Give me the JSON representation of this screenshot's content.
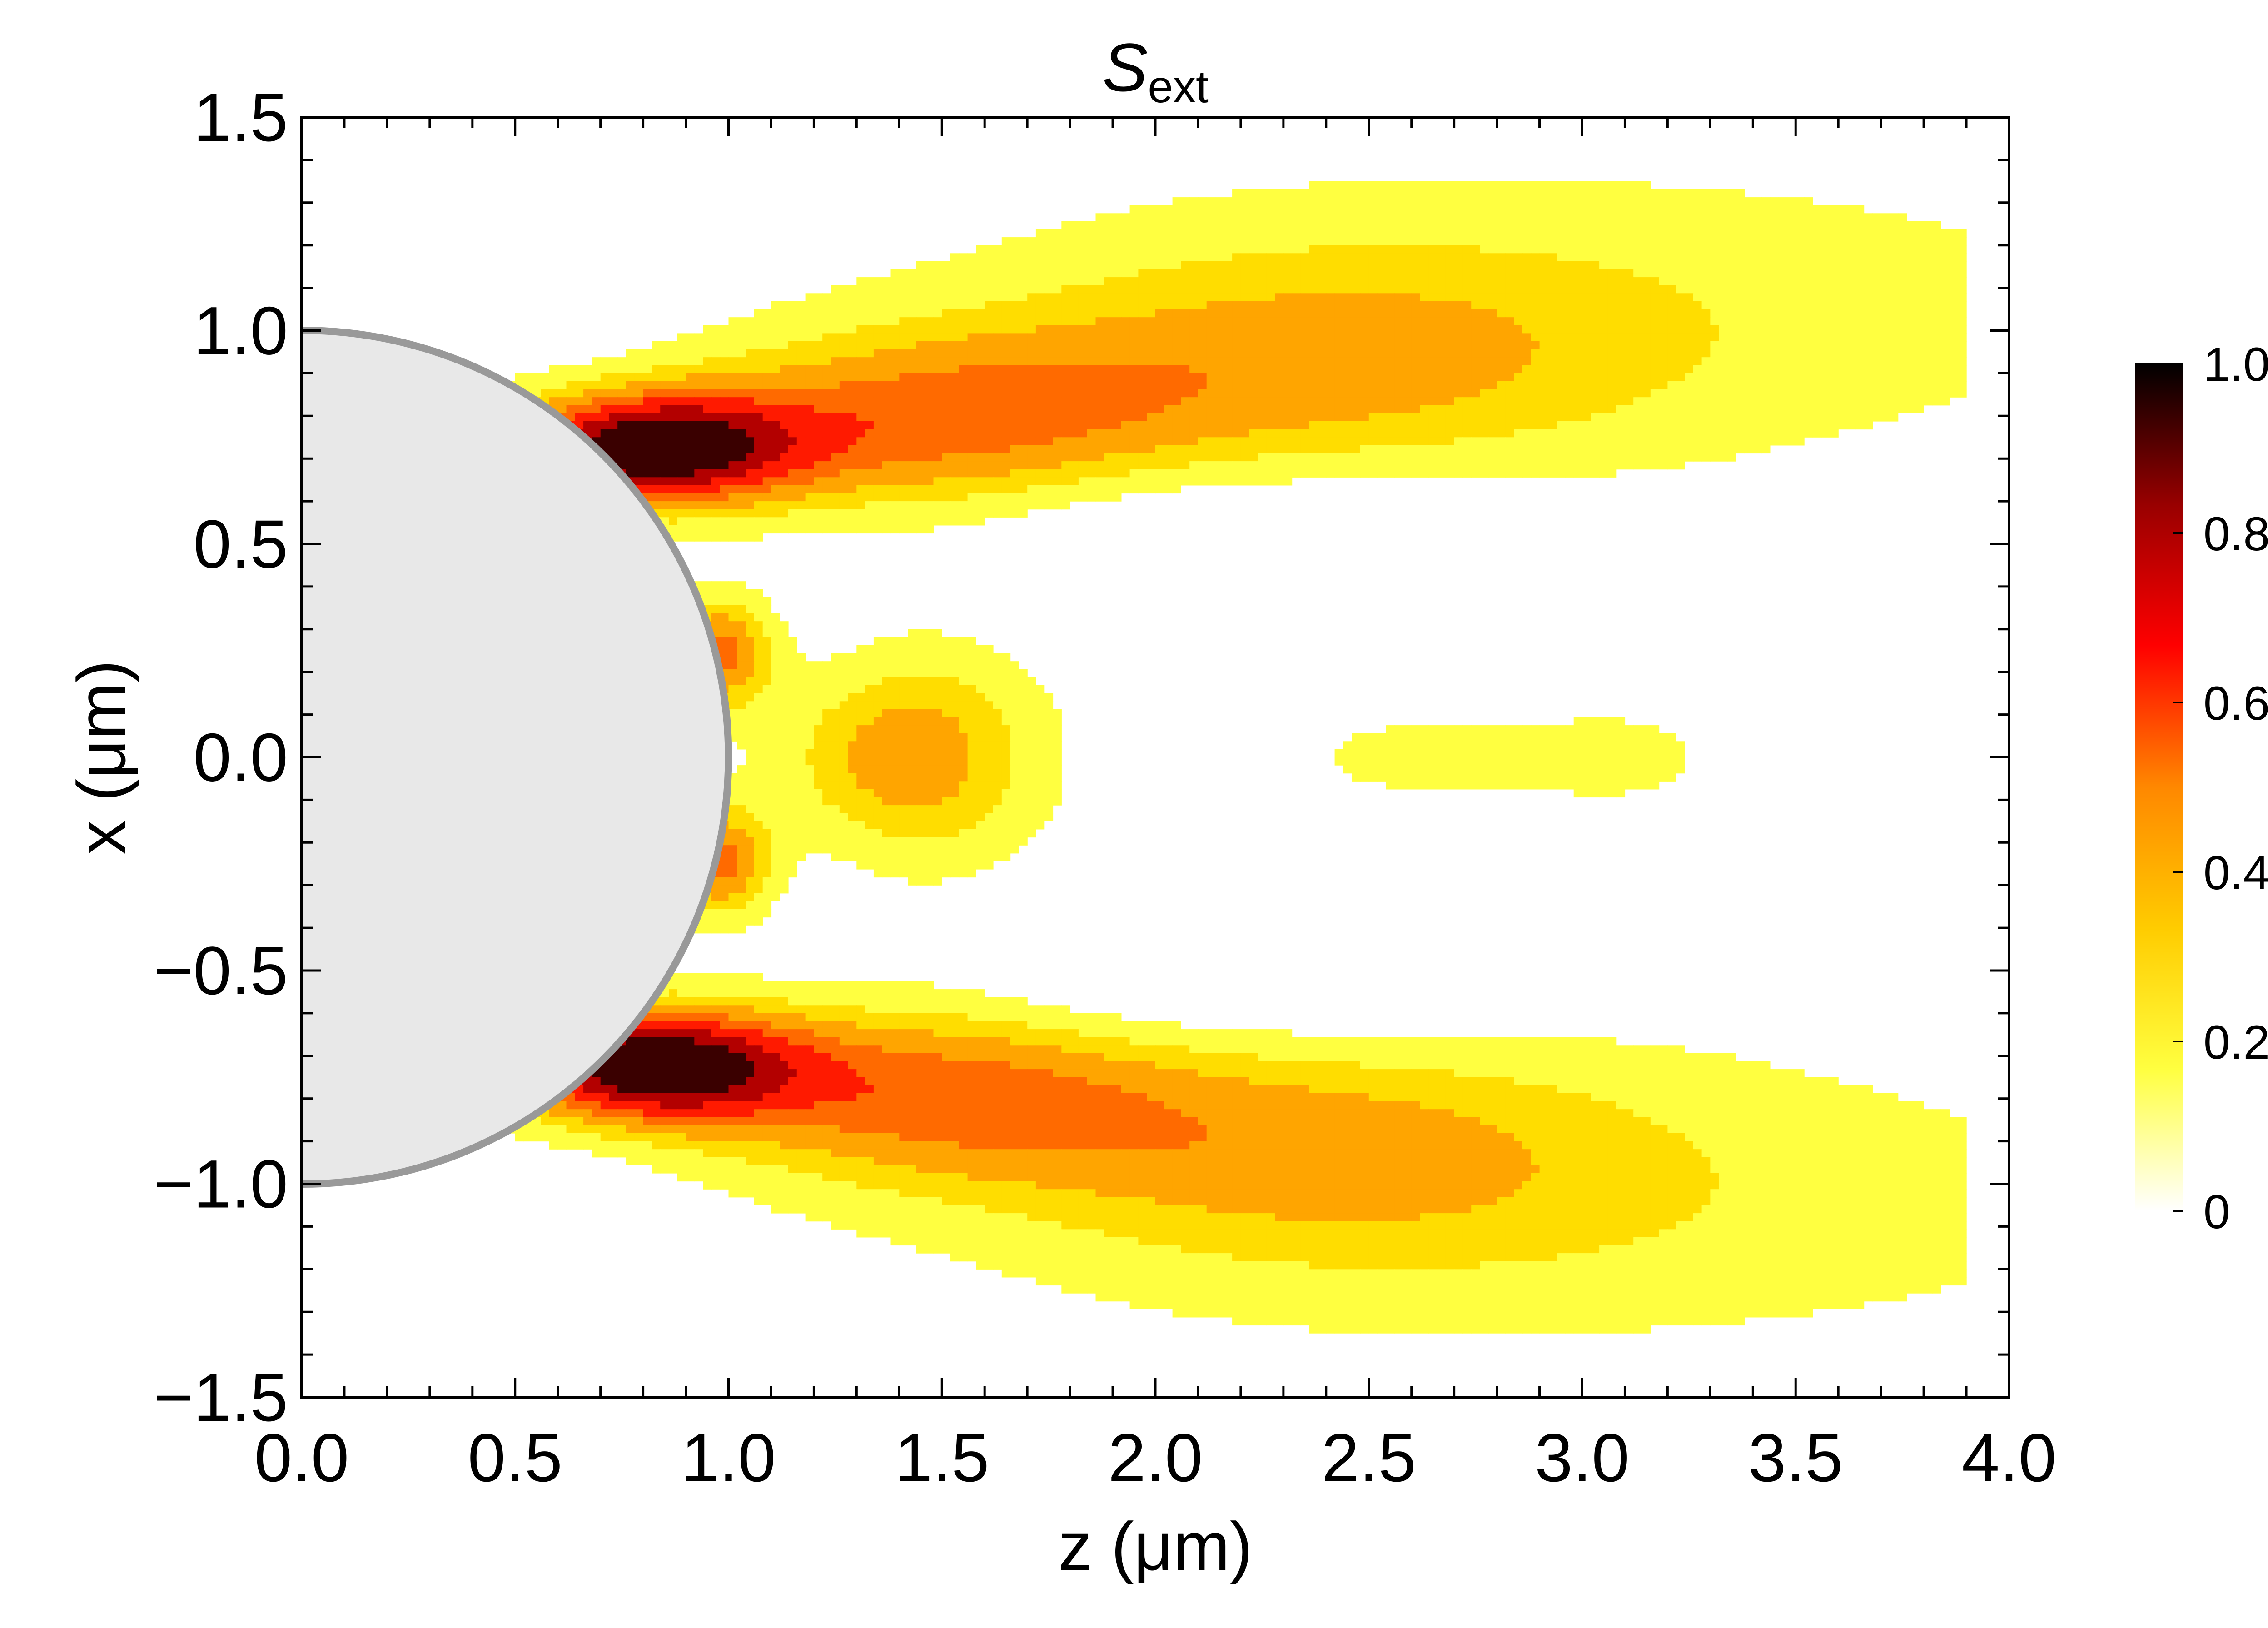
{
  "chart_data": {
    "type": "contour",
    "title": "S",
    "title_subscript": "ext",
    "xlabel": "z (μm)",
    "ylabel": "x (μm)",
    "xlim": [
      0.0,
      4.0
    ],
    "ylim": [
      -1.5,
      1.5
    ],
    "xticks": [
      "0.0",
      "0.5",
      "1.0",
      "1.5",
      "2.0",
      "2.5",
      "3.0",
      "3.5",
      "4.0"
    ],
    "yticks": [
      "1.5",
      "1.0",
      "0.5",
      "0.0",
      "−0.5",
      "−1.0",
      "−1.5"
    ],
    "xtick_values": [
      0,
      0.5,
      1,
      1.5,
      2,
      2.5,
      3,
      3.5,
      4
    ],
    "ytick_values": [
      1.5,
      1,
      0.5,
      0,
      -0.5,
      -1,
      -1.5
    ],
    "colorbar": {
      "range": [
        0,
        1.0
      ],
      "ticks": [
        "1.0",
        "0.8",
        "0.6",
        "0.4",
        "0.2",
        "0"
      ],
      "tick_values": [
        1.0,
        0.8,
        0.6,
        0.4,
        0.2,
        0
      ],
      "colormap": [
        "#ffffff",
        "#ffff40",
        "#ffcc00",
        "#ff8800",
        "#ff0000",
        "#990000",
        "#000000"
      ]
    },
    "sphere": {
      "center_z": 0,
      "center_x": 0,
      "radius": 1.0,
      "fill": "#e8e8e8",
      "stroke": "#999999"
    },
    "contour_line_color": "#999999",
    "levels": [
      {
        "value": 0.15,
        "color": "#ffff40"
      },
      {
        "value": 0.3,
        "color": "#ffdd00"
      },
      {
        "value": 0.42,
        "color": "#ffa500"
      },
      {
        "value": 0.55,
        "color": "#ff6a00"
      },
      {
        "value": 0.67,
        "color": "#ff1a00"
      },
      {
        "value": 0.8,
        "color": "#b30000"
      },
      {
        "value": 0.92,
        "color": "#3a0000"
      }
    ]
  }
}
